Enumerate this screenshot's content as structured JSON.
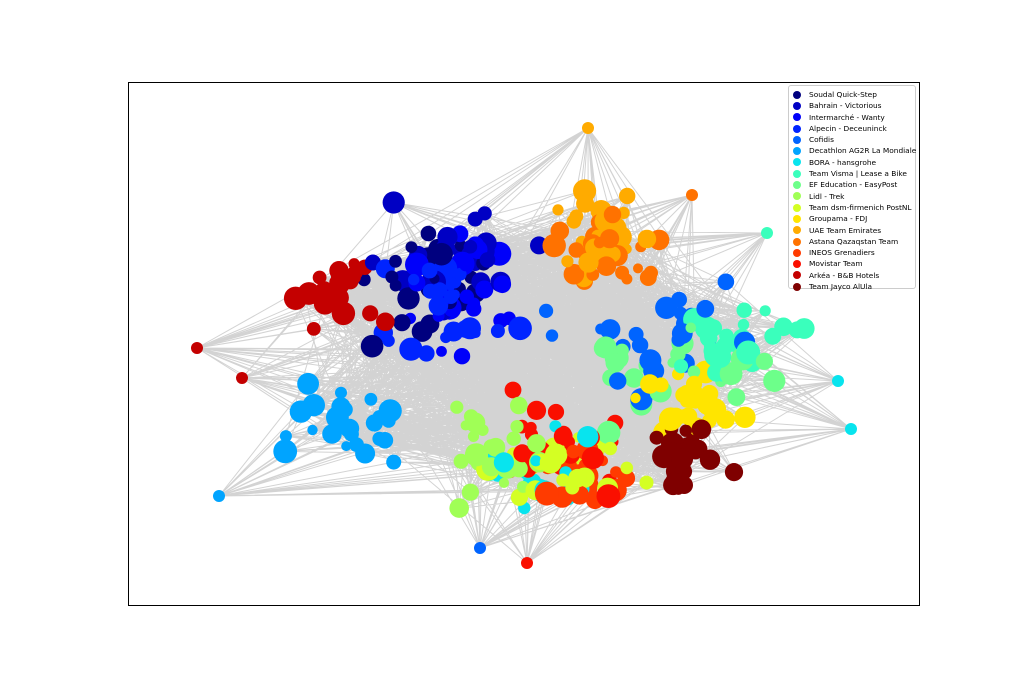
{
  "chart_data": {
    "type": "network",
    "axes_visible": false,
    "legend_position": "top-right",
    "edge_color": "#d3d3d3",
    "teams": [
      {
        "name": "Soudal Quick-Step",
        "color": "#00007f"
      },
      {
        "name": "Bahrain - Victorious",
        "color": "#0000c4"
      },
      {
        "name": "Intermarché - Wanty",
        "color": "#0000fa"
      },
      {
        "name": "Alpecin - Deceuninck",
        "color": "#0024ff"
      },
      {
        "name": "Cofidis",
        "color": "#0064ff"
      },
      {
        "name": "Decathlon AG2R La Mondiale",
        "color": "#00a4ff"
      },
      {
        "name": "BORA - hansgrohe",
        "color": "#08e4ee"
      },
      {
        "name": "Team Visma | Lease a Bike",
        "color": "#3affbc"
      },
      {
        "name": "EF Education - EasyPost",
        "color": "#6dff8a"
      },
      {
        "name": "Lidl - Trek",
        "color": "#a0ff56"
      },
      {
        "name": "Team dsm-firmenich PostNL",
        "color": "#d4ff23"
      },
      {
        "name": "Groupama - FDJ",
        "color": "#ffe500"
      },
      {
        "name": "UAE Team Emirates",
        "color": "#ffab00"
      },
      {
        "name": "Astana Qazaqstan Team",
        "color": "#ff7200"
      },
      {
        "name": "INEOS Grenadiers",
        "color": "#ff3b00"
      },
      {
        "name": "Movistar Team",
        "color": "#fa0f00"
      },
      {
        "name": "Arkéa - B&B Hotels",
        "color": "#c40000"
      },
      {
        "name": "Team Jayco AlUla",
        "color": "#7f0000"
      }
    ]
  }
}
